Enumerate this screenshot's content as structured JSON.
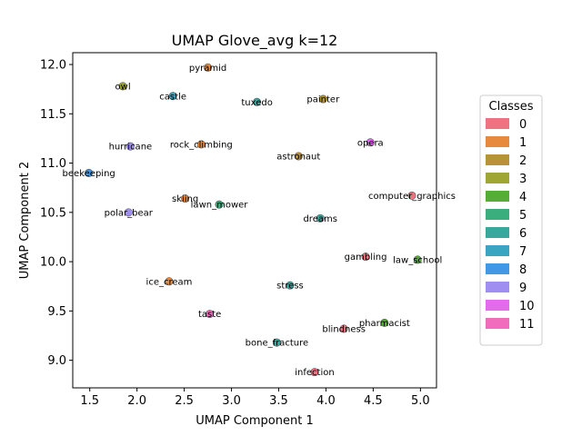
{
  "chart_data": {
    "type": "scatter",
    "title": "UMAP Glove_avg k=12",
    "xlabel": "UMAP Component 1",
    "ylabel": "UMAP Component 2",
    "xlim": [
      1.32,
      5.17
    ],
    "ylim": [
      8.72,
      12.12
    ],
    "xticks": [
      "1.5",
      "2.0",
      "2.5",
      "3.0",
      "3.5",
      "4.0",
      "4.5",
      "5.0"
    ],
    "yticks": [
      "9.0",
      "9.5",
      "10.0",
      "10.5",
      "11.0",
      "11.5",
      "12.0"
    ],
    "grid": false,
    "legend": {
      "title": "Classes",
      "placement": "right",
      "entries": [
        "0",
        "1",
        "2",
        "3",
        "4",
        "5",
        "6",
        "7",
        "8",
        "9",
        "10",
        "11"
      ]
    },
    "class_colors": [
      "#f07280",
      "#e88a3e",
      "#b89236",
      "#9fa633",
      "#55ad35",
      "#3aae7d",
      "#38a79c",
      "#3aa5c0",
      "#4199e6",
      "#a08ff0",
      "#e26aeb",
      "#f26cbd"
    ],
    "points": [
      {
        "label": "pyramid",
        "x": 2.75,
        "y": 11.97,
        "class": 1
      },
      {
        "label": "owl",
        "x": 1.85,
        "y": 11.78,
        "class": 3
      },
      {
        "label": "castle",
        "x": 2.38,
        "y": 11.68,
        "class": 7
      },
      {
        "label": "tuxedo",
        "x": 3.27,
        "y": 11.62,
        "class": 6
      },
      {
        "label": "painter",
        "x": 3.97,
        "y": 11.65,
        "class": 2
      },
      {
        "label": "hurricane",
        "x": 1.93,
        "y": 11.17,
        "class": 9
      },
      {
        "label": "rock_climbing",
        "x": 2.68,
        "y": 11.19,
        "class": 1
      },
      {
        "label": "astronaut",
        "x": 3.71,
        "y": 11.07,
        "class": 2
      },
      {
        "label": "opera",
        "x": 4.47,
        "y": 11.21,
        "class": 10
      },
      {
        "label": "beekeeping",
        "x": 1.49,
        "y": 10.9,
        "class": 8
      },
      {
        "label": "computer_graphics",
        "x": 4.91,
        "y": 10.67,
        "class": 0
      },
      {
        "label": "skiing",
        "x": 2.51,
        "y": 10.64,
        "class": 1
      },
      {
        "label": "lawn_mower",
        "x": 2.87,
        "y": 10.58,
        "class": 5
      },
      {
        "label": "polar_bear",
        "x": 1.91,
        "y": 10.5,
        "class": 9
      },
      {
        "label": "dreams",
        "x": 3.94,
        "y": 10.44,
        "class": 6
      },
      {
        "label": "gambling",
        "x": 4.42,
        "y": 10.05,
        "class": 0
      },
      {
        "label": "law_school",
        "x": 4.97,
        "y": 10.02,
        "class": 4
      },
      {
        "label": "ice_cream",
        "x": 2.34,
        "y": 9.8,
        "class": 1
      },
      {
        "label": "stress",
        "x": 3.62,
        "y": 9.76,
        "class": 6
      },
      {
        "label": "taste",
        "x": 2.77,
        "y": 9.47,
        "class": 11
      },
      {
        "label": "pharmacist",
        "x": 4.62,
        "y": 9.38,
        "class": 4
      },
      {
        "label": "blindness",
        "x": 4.19,
        "y": 9.32,
        "class": 0
      },
      {
        "label": "bone_fracture",
        "x": 3.48,
        "y": 9.18,
        "class": 6
      },
      {
        "label": "infection",
        "x": 3.88,
        "y": 8.88,
        "class": 0
      }
    ]
  }
}
